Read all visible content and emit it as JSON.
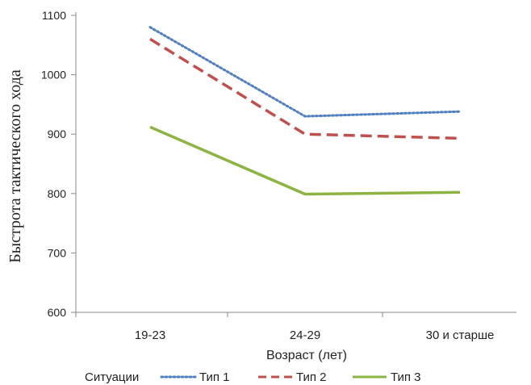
{
  "chart_data": {
    "type": "line",
    "categories": [
      "19-23",
      "24-29",
      "30 и старше"
    ],
    "series": [
      {
        "name": "Тип 1",
        "values": [
          1080,
          930,
          938
        ],
        "color": "#4f7fbf",
        "style": "dotted"
      },
      {
        "name": "Тип 2",
        "values": [
          1060,
          900,
          893
        ],
        "color": "#c0504d",
        "style": "dashed"
      },
      {
        "name": "Тип 3",
        "values": [
          912,
          799,
          802
        ],
        "color": "#8cb443",
        "style": "solid"
      }
    ],
    "xlabel": "Возраст (лет)",
    "ylabel": "Быстрота тактического хода",
    "ylim": [
      600,
      1100
    ],
    "yticks": [
      600,
      700,
      800,
      900,
      1000,
      1100
    ],
    "legend_title": "Ситуации",
    "legend_position": "bottom",
    "grid": false
  }
}
